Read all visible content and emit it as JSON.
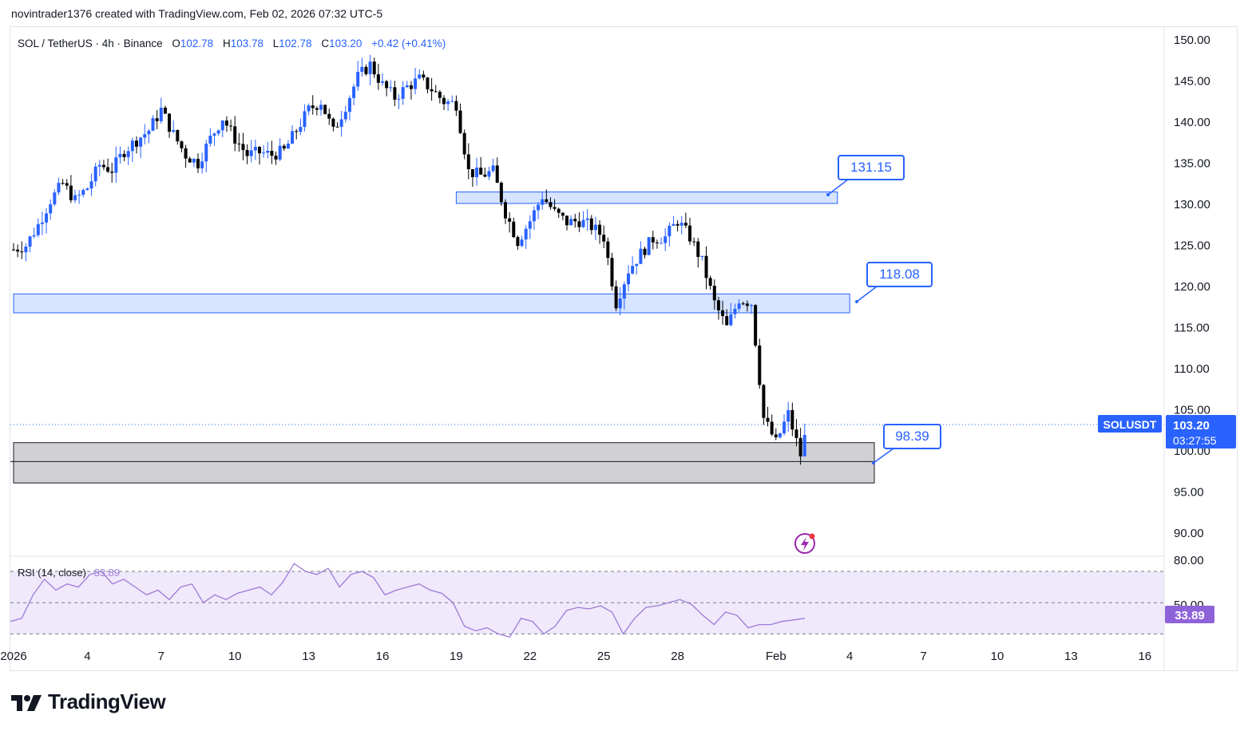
{
  "header": {
    "attribution": "novintrader1376 created with TradingView.com, Feb 02, 2026 07:32 UTC-5"
  },
  "legend": {
    "symbol": "SOL / TetherUS · 4h · Binance",
    "open_label": "O",
    "open": "102.78",
    "high_label": "H",
    "high": "103.78",
    "low_label": "L",
    "low": "102.78",
    "close_label": "C",
    "close": "103.20",
    "change": "+0.42 (+0.41%)"
  },
  "price_tag": {
    "ticker": "SOLUSDT",
    "price": "103.20",
    "countdown": "03:27:55"
  },
  "rsi": {
    "label": "RSI (14, close)",
    "value": "33.89"
  },
  "branding": {
    "name": "TradingView"
  },
  "colors": {
    "up": "#2962ff",
    "down": "#000000",
    "zone_fill": "#d6e4ff",
    "zone_border": "#2962ff",
    "gray_zone": "#d1d1d3",
    "rsi_line": "#9e7ad6",
    "rsi_band": "#efe9fb",
    "accent": "#2962ff"
  },
  "chart_data": {
    "type": "candlestick",
    "title": "SOL / TetherUS · 4h · Binance",
    "y_ticks": [
      150,
      145,
      140,
      135,
      130,
      125,
      120,
      115,
      110,
      105,
      100,
      95,
      90
    ],
    "y_tick_labels": [
      "150.00",
      "145.00",
      "140.00",
      "135.00",
      "130.00",
      "125.00",
      "120.00",
      "115.00",
      "110.00",
      "105.00",
      "100.00",
      "95.00",
      "90.00"
    ],
    "x_tick_labels": [
      "2026",
      "4",
      "7",
      "10",
      "13",
      "16",
      "19",
      "22",
      "25",
      "28",
      "Feb",
      "4",
      "7",
      "10",
      "13",
      "16"
    ],
    "x_tick_dates": [
      "2026-01-01",
      "2026-01-04",
      "2026-01-07",
      "2026-01-10",
      "2026-01-13",
      "2026-01-16",
      "2026-01-19",
      "2026-01-22",
      "2026-01-25",
      "2026-01-28",
      "2026-02-01",
      "2026-02-04",
      "2026-02-07",
      "2026-02-10",
      "2026-02-13",
      "2026-02-16"
    ],
    "close_path": [
      [
        "2026-01-01",
        124.5
      ],
      [
        "2026-01-01T12:00",
        125
      ],
      [
        "2026-01-02",
        127.5
      ],
      [
        "2026-01-02T12:00",
        130.5
      ],
      [
        "2026-01-03",
        132.5
      ],
      [
        "2026-01-03T12:00",
        130.5
      ],
      [
        "2026-01-04",
        132
      ],
      [
        "2026-01-04T12:00",
        134.8
      ],
      [
        "2026-01-05",
        134.2
      ],
      [
        "2026-01-05T12:00",
        136.5
      ],
      [
        "2026-01-06",
        137.8
      ],
      [
        "2026-01-06T12:00",
        139
      ],
      [
        "2026-01-07",
        141.5
      ],
      [
        "2026-01-07T12:00",
        138.5
      ],
      [
        "2026-01-08",
        136
      ],
      [
        "2026-01-08T12:00",
        135
      ],
      [
        "2026-01-09",
        138
      ],
      [
        "2026-01-09T12:00",
        140.5
      ],
      [
        "2026-01-10",
        138
      ],
      [
        "2026-01-10T12:00",
        136
      ],
      [
        "2026-01-11",
        136.3
      ],
      [
        "2026-01-11T12:00",
        136
      ],
      [
        "2026-01-12",
        136.5
      ],
      [
        "2026-01-12T12:00",
        139
      ],
      [
        "2026-01-13",
        141.5
      ],
      [
        "2026-01-13T12:00",
        142.5
      ],
      [
        "2026-01-14",
        138.8
      ],
      [
        "2026-01-14T12:00",
        142
      ],
      [
        "2026-01-15",
        145.5
      ],
      [
        "2026-01-15T12:00",
        147
      ],
      [
        "2026-01-16",
        144.5
      ],
      [
        "2026-01-16T12:00",
        143
      ],
      [
        "2026-01-17",
        144.3
      ],
      [
        "2026-01-17T12:00",
        145.2
      ],
      [
        "2026-01-18",
        144
      ],
      [
        "2026-01-18T12:00",
        142.5
      ],
      [
        "2026-01-19",
        142.2
      ],
      [
        "2026-01-19T12:00",
        134
      ],
      [
        "2026-01-20",
        133.5
      ],
      [
        "2026-01-20T12:00",
        134
      ],
      [
        "2026-01-21",
        129
      ],
      [
        "2026-01-21T12:00",
        125.5
      ],
      [
        "2026-01-22",
        128
      ],
      [
        "2026-01-22T12:00",
        131
      ],
      [
        "2026-01-23",
        129
      ],
      [
        "2026-01-23T12:00",
        127.8
      ],
      [
        "2026-01-24",
        128
      ],
      [
        "2026-01-24T12:00",
        127.3
      ],
      [
        "2026-01-25",
        126
      ],
      [
        "2026-01-25T12:00",
        118
      ],
      [
        "2026-01-26",
        122
      ],
      [
        "2026-01-26T12:00",
        124
      ],
      [
        "2026-01-27",
        125.8
      ],
      [
        "2026-01-27T12:00",
        126
      ],
      [
        "2026-01-28",
        128
      ],
      [
        "2026-01-28T12:00",
        126
      ],
      [
        "2026-01-29",
        123
      ],
      [
        "2026-01-29T12:00",
        118
      ],
      [
        "2026-01-30",
        115
      ],
      [
        "2026-01-30T12:00",
        118.5
      ],
      [
        "2026-01-31",
        118
      ],
      [
        "2026-01-31T12:00",
        104
      ],
      [
        "2026-02-01",
        101
      ],
      [
        "2026-02-01T12:00",
        104.5
      ],
      [
        "2026-02-02",
        99.5
      ],
      [
        "2026-02-02T07:00",
        103.2
      ]
    ],
    "zones": [
      {
        "label": "131.15",
        "top": 131.5,
        "bottom": 130.1,
        "start": "2026-01-19",
        "end": "2026-02-03T12:00"
      },
      {
        "label": "118.08",
        "top": 119.1,
        "bottom": 116.8,
        "start": "2026-01-01",
        "end": "2026-02-04"
      },
      {
        "top": 101,
        "bottom": 96.1,
        "start": "2026-01-01",
        "end": "2026-02-05"
      }
    ],
    "level_line": 98.7,
    "rsi_values": [
      38,
      40,
      55,
      65,
      58,
      62,
      60,
      68,
      70,
      62,
      65,
      60,
      55,
      58,
      52,
      60,
      62,
      50,
      55,
      52,
      56,
      58,
      60,
      55,
      63,
      75,
      70,
      68,
      72,
      60,
      68,
      70,
      66,
      55,
      58,
      60,
      62,
      58,
      56,
      50,
      35,
      32,
      34,
      30,
      28,
      40,
      38,
      30,
      35,
      45,
      47,
      46,
      48,
      44,
      30,
      40,
      47,
      48,
      50,
      52,
      49,
      42,
      36,
      44,
      42,
      34,
      36,
      36,
      38,
      39,
      40
    ],
    "rsi_last": 33.89,
    "rsi_bands": [
      70,
      50,
      30
    ],
    "rsi_tick_labels": [
      "80.00",
      "50.00"
    ]
  }
}
